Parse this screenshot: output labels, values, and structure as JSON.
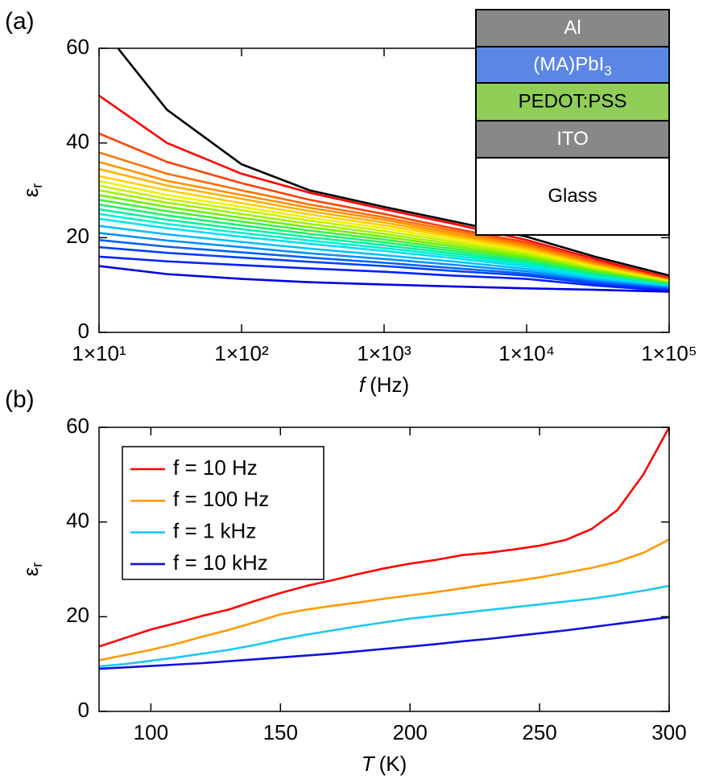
{
  "chart_data": [
    {
      "type": "line",
      "panel": "(a)",
      "xscale": "log",
      "xlabel_var": "f",
      "xlabel_unit": "(Hz)",
      "ylabel": "ε",
      "ylabel_sub": "r",
      "xlim": [
        10,
        100000
      ],
      "ylim": [
        0,
        60
      ],
      "xticks": [
        {
          "value": 10,
          "label": "1×10¹"
        },
        {
          "value": 100,
          "label": "1×10²"
        },
        {
          "value": 1000,
          "label": "1×10³"
        },
        {
          "value": 10000,
          "label": "1×10⁴"
        },
        {
          "value": 100000,
          "label": "1×10⁵"
        }
      ],
      "yticks": [
        0,
        20,
        40,
        60
      ],
      "x": [
        10,
        30,
        100,
        300,
        1000,
        3000,
        10000,
        30000,
        100000
      ],
      "series": [
        {
          "color": "#000000",
          "values": [
            65,
            47,
            35.5,
            30,
            26.5,
            23.5,
            20.2,
            16,
            12
          ]
        },
        {
          "color": "#ff0000",
          "values": [
            50,
            40,
            33.5,
            29.5,
            26,
            23,
            19.5,
            15.5,
            11.5
          ]
        },
        {
          "color": "#ff4000",
          "values": [
            42,
            36,
            31.5,
            28,
            25,
            22,
            19,
            15,
            11.3
          ]
        },
        {
          "color": "#ff7000",
          "values": [
            38,
            33.5,
            30,
            27,
            24.3,
            21.5,
            18.6,
            14.8,
            11.1
          ]
        },
        {
          "color": "#ff9000",
          "values": [
            36,
            32,
            29,
            26.3,
            23.8,
            21,
            18.2,
            14.5,
            11
          ]
        },
        {
          "color": "#ffb000",
          "values": [
            34.5,
            31,
            28.2,
            25.6,
            23.2,
            20.6,
            17.8,
            14.2,
            10.9
          ]
        },
        {
          "color": "#ffd000",
          "values": [
            33,
            30,
            27.3,
            24.9,
            22.6,
            20.2,
            17.5,
            14,
            10.8
          ]
        },
        {
          "color": "#f0f000",
          "values": [
            32,
            29,
            26.5,
            24.2,
            22,
            19.7,
            17.1,
            13.8,
            10.7
          ]
        },
        {
          "color": "#c8f000",
          "values": [
            31,
            28.2,
            25.8,
            23.6,
            21.4,
            19.2,
            16.7,
            13.5,
            10.6
          ]
        },
        {
          "color": "#a0f000",
          "values": [
            30,
            27.4,
            25,
            22.9,
            20.8,
            18.7,
            16.3,
            13.2,
            10.5
          ]
        },
        {
          "color": "#70f000",
          "values": [
            29,
            26.5,
            24.2,
            22.2,
            20.2,
            18.2,
            15.9,
            13,
            10.4
          ]
        },
        {
          "color": "#40f040",
          "values": [
            28,
            25.6,
            23.4,
            21.5,
            19.6,
            17.7,
            15.5,
            12.7,
            10.2
          ]
        },
        {
          "color": "#20f070",
          "values": [
            27,
            24.7,
            22.6,
            20.8,
            19,
            17.2,
            15.1,
            12.4,
            10.1
          ]
        },
        {
          "color": "#00f0a0",
          "values": [
            26,
            23.8,
            21.8,
            20.1,
            18.4,
            16.7,
            14.7,
            12.1,
            10
          ]
        },
        {
          "color": "#00f0d0",
          "values": [
            25,
            22.9,
            21,
            19.4,
            17.8,
            16.2,
            14.3,
            11.8,
            9.9
          ]
        },
        {
          "color": "#00e0f0",
          "values": [
            24,
            22,
            20.2,
            18.7,
            17.2,
            15.7,
            13.9,
            11.5,
            9.8
          ]
        },
        {
          "color": "#00c0ff",
          "values": [
            22.5,
            20.7,
            19.1,
            17.7,
            16.3,
            15,
            13.4,
            11.2,
            9.6
          ]
        },
        {
          "color": "#0090ff",
          "values": [
            21,
            19.4,
            18,
            16.7,
            15.5,
            14.3,
            12.9,
            10.9,
            9.4
          ]
        },
        {
          "color": "#0060ff",
          "values": [
            19.5,
            18.1,
            16.9,
            15.8,
            14.7,
            13.6,
            12.4,
            10.6,
            9.2
          ]
        },
        {
          "color": "#0040ff",
          "values": [
            18,
            16.8,
            15.8,
            14.9,
            14,
            13,
            12,
            10.3,
            9
          ]
        },
        {
          "color": "#0020ff",
          "values": [
            16,
            15,
            14.2,
            13.5,
            12.8,
            12,
            11.3,
            9.9,
            8.8
          ]
        },
        {
          "color": "#0000e0",
          "values": [
            14,
            12.3,
            11.3,
            10.6,
            10.1,
            9.7,
            9.3,
            9,
            8.6
          ]
        }
      ],
      "inset": [
        {
          "label": "Al",
          "color": "#888888",
          "text_color": "#ffffff"
        },
        {
          "label": "(MA)PbI",
          "subscript": "3",
          "color": "#5b86e5",
          "text_color": "#ffffff"
        },
        {
          "label": "PEDOT:PSS",
          "color": "#8fce57",
          "text_color": "#000000"
        },
        {
          "label": "ITO",
          "color": "#888888",
          "text_color": "#ffffff"
        },
        {
          "label": "Glass",
          "color": "#ffffff",
          "text_color": "#000000"
        }
      ]
    },
    {
      "type": "line",
      "panel": "(b)",
      "xscale": "linear",
      "xlabel_var": "T",
      "xlabel_unit": "(K)",
      "ylabel": "ε",
      "ylabel_sub": "r",
      "xlim": [
        80,
        300
      ],
      "ylim": [
        0,
        60
      ],
      "xticks": [
        100,
        150,
        200,
        250,
        300
      ],
      "yticks": [
        0,
        20,
        40,
        60
      ],
      "legend": "upper left",
      "x": [
        80,
        90,
        100,
        110,
        120,
        130,
        140,
        150,
        160,
        170,
        180,
        190,
        200,
        210,
        220,
        230,
        240,
        250,
        260,
        270,
        280,
        290,
        300
      ],
      "series": [
        {
          "name": "f = 10 Hz",
          "color": "#ff0000",
          "values": [
            13.7,
            15.5,
            17.3,
            18.7,
            20.2,
            21.5,
            23.3,
            25,
            26.5,
            27.7,
            29,
            30.2,
            31.2,
            32,
            33,
            33.5,
            34.2,
            35,
            36.2,
            38.5,
            42.5,
            50,
            60
          ]
        },
        {
          "name": "f = 100 Hz",
          "color": "#ff9900",
          "values": [
            10.8,
            11.9,
            13,
            14.3,
            15.8,
            17.2,
            18.8,
            20.5,
            21.5,
            22.3,
            23,
            23.8,
            24.5,
            25.2,
            26,
            26.8,
            27.5,
            28.3,
            29.3,
            30.3,
            31.6,
            33.5,
            36.3
          ]
        },
        {
          "name": "f = 1 kHz",
          "color": "#19c8f5",
          "values": [
            9.5,
            10,
            10.7,
            11.4,
            12.2,
            13,
            14,
            15.2,
            16.2,
            17.1,
            18,
            18.8,
            19.6,
            20.2,
            20.8,
            21.4,
            22,
            22.6,
            23.2,
            23.8,
            24.6,
            25.5,
            26.5
          ]
        },
        {
          "name": "f = 10 kHz",
          "color": "#1010e0",
          "values": [
            9,
            9.3,
            9.6,
            9.9,
            10.2,
            10.6,
            11,
            11.4,
            11.8,
            12.2,
            12.7,
            13.2,
            13.7,
            14.2,
            14.8,
            15.3,
            15.9,
            16.5,
            17.1,
            17.8,
            18.5,
            19.2,
            19.9
          ]
        }
      ]
    }
  ]
}
